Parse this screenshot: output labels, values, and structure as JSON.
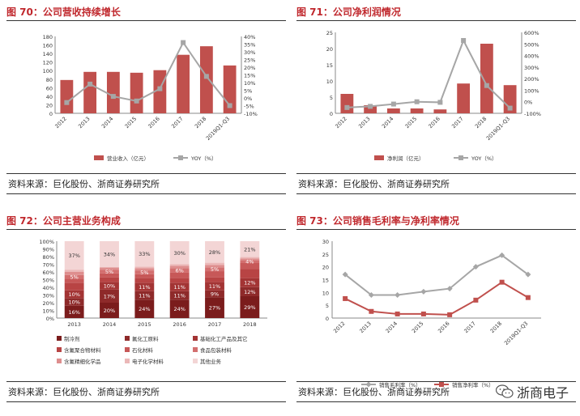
{
  "panels": [
    {
      "title": "图 70：公司营收持续增长",
      "source": "资料来源：巨化股份、浙商证券研究所"
    },
    {
      "title": "图 71：公司净利润情况",
      "source": "资料来源：巨化股份、浙商证券研究所"
    },
    {
      "title": "图 72：公司主营业务构成",
      "source": "资料来源：巨化股份、浙商证券研究所"
    },
    {
      "title": "图 73：公司销售毛利率与净利率情况",
      "source": "资料来源：巨化股份、浙商证券研究所"
    }
  ],
  "watermark": {
    "text": "浙商电子",
    "icon": "wechat-icon"
  },
  "colors": {
    "bar_red": "#c0504d",
    "line_gray": "#a6a6a6",
    "line_red": "#c0504d",
    "title_red": "#c0282d"
  },
  "chart_data": [
    {
      "type": "bar",
      "categories": [
        "2012",
        "2013",
        "2014",
        "2015",
        "2016",
        "2017",
        "2018",
        "2019Q1-Q3"
      ],
      "series": [
        {
          "name": "营业收入（亿元）",
          "type": "bar",
          "axis": "left",
          "values": [
            78,
            97,
            97,
            95,
            101,
            137,
            157,
            112
          ]
        },
        {
          "name": "YOY（%）",
          "type": "line",
          "axis": "right",
          "values": [
            -3,
            9,
            1,
            -2,
            6,
            36,
            14,
            -5
          ]
        }
      ],
      "ylim": [
        0,
        180
      ],
      "yticks": [
        0,
        20,
        40,
        60,
        80,
        100,
        120,
        140,
        160,
        180
      ],
      "y2lim": [
        -10,
        40
      ],
      "y2ticks": [
        "-10%",
        "-5%",
        "0%",
        "5%",
        "10%",
        "15%",
        "20%",
        "25%",
        "30%",
        "35%",
        "40%"
      ],
      "legend": "bottom"
    },
    {
      "type": "bar",
      "categories": [
        "2012",
        "2013",
        "2014",
        "2015",
        "2016",
        "2017",
        "2018",
        "2019Q1-Q3"
      ],
      "series": [
        {
          "name": "净利润（亿元）",
          "type": "bar",
          "axis": "left",
          "values": [
            6,
            2.5,
            1.5,
            1.5,
            1.2,
            9.2,
            21.5,
            8.7
          ]
        },
        {
          "name": "YOY（%）",
          "type": "line",
          "axis": "right",
          "values": [
            -50,
            -40,
            -20,
            0,
            -5,
            530,
            140,
            -55
          ]
        }
      ],
      "ylim": [
        0,
        25
      ],
      "yticks": [
        0,
        5,
        10,
        15,
        20,
        25
      ],
      "y2lim": [
        -100,
        600
      ],
      "y2ticks": [
        "-100%",
        "0%",
        "100%",
        "200%",
        "300%",
        "400%",
        "500%",
        "600%"
      ],
      "legend": "bottom"
    },
    {
      "type": "bar",
      "stacked": true,
      "categories": [
        "2013",
        "2014",
        "2015",
        "2016",
        "2017",
        "2018"
      ],
      "yticks": [
        "0%",
        "10%",
        "20%",
        "30%",
        "40%",
        "50%",
        "60%",
        "70%",
        "80%",
        "90%",
        "100%"
      ],
      "series": [
        {
          "name": "制冷剂",
          "color": "#7b1c1c",
          "values": [
            16,
            20,
            24,
            24,
            27,
            29
          ]
        },
        {
          "name": "氟化工原料",
          "color": "#8e2a2a",
          "values": [
            10,
            17,
            11,
            11,
            9,
            12
          ]
        },
        {
          "name": "基础化工产品及其它",
          "color": "#a33434",
          "values": [
            10,
            10,
            11,
            11,
            11,
            12
          ]
        },
        {
          "name": "含氟聚合物材料",
          "color": "#b84444",
          "values": [
            10,
            6,
            6,
            6,
            6,
            12
          ]
        },
        {
          "name": "石化材料",
          "color": "#c75858",
          "values": [
            5,
            5,
            5,
            7,
            8,
            8
          ]
        },
        {
          "name": "食品包装材料",
          "color": "#d36f6f",
          "values": [
            5,
            5,
            5,
            6,
            5,
            4
          ]
        },
        {
          "name": "含氟精细化学品",
          "color": "#de8e8e",
          "values": [
            4,
            3,
            3,
            3,
            3,
            2
          ]
        },
        {
          "name": "电子化学材料",
          "color": "#ebb8b8",
          "values": [
            3,
            0,
            2,
            2,
            3,
            2
          ]
        },
        {
          "name": "其他业务",
          "color": "#f3d5d5",
          "values": [
            37,
            34,
            33,
            30,
            28,
            21
          ]
        }
      ],
      "data_labels": [
        [
          "16%",
          "10%",
          "10%",
          "5%",
          "37%"
        ],
        [
          "20%",
          "17%",
          "10%",
          "5%",
          "34%"
        ],
        [
          "24%",
          "11%",
          "11%",
          "5%",
          "33%"
        ],
        [
          "24%",
          "11%",
          "11%",
          "6%",
          "30%"
        ],
        [
          "27%",
          "9%",
          "11%",
          "5%",
          "28%"
        ],
        [
          "29%",
          "12%",
          "12%",
          "4%",
          "21%"
        ]
      ],
      "legend": "bottom"
    },
    {
      "type": "line",
      "categories": [
        "2012",
        "2013",
        "2014",
        "2015",
        "2016",
        "2017",
        "2018",
        "2019Q1-Q3"
      ],
      "series": [
        {
          "name": "销售毛利率（%）",
          "values": [
            17,
            9,
            9,
            10.3,
            11.5,
            20,
            24.5,
            17
          ]
        },
        {
          "name": "销售净利率（%）",
          "values": [
            7.6,
            2.6,
            1.6,
            1.6,
            1.3,
            7,
            14,
            8
          ]
        }
      ],
      "ylim": [
        0,
        30
      ],
      "yticks": [
        0,
        5,
        10,
        15,
        20,
        25,
        30
      ],
      "legend": "bottom"
    }
  ]
}
